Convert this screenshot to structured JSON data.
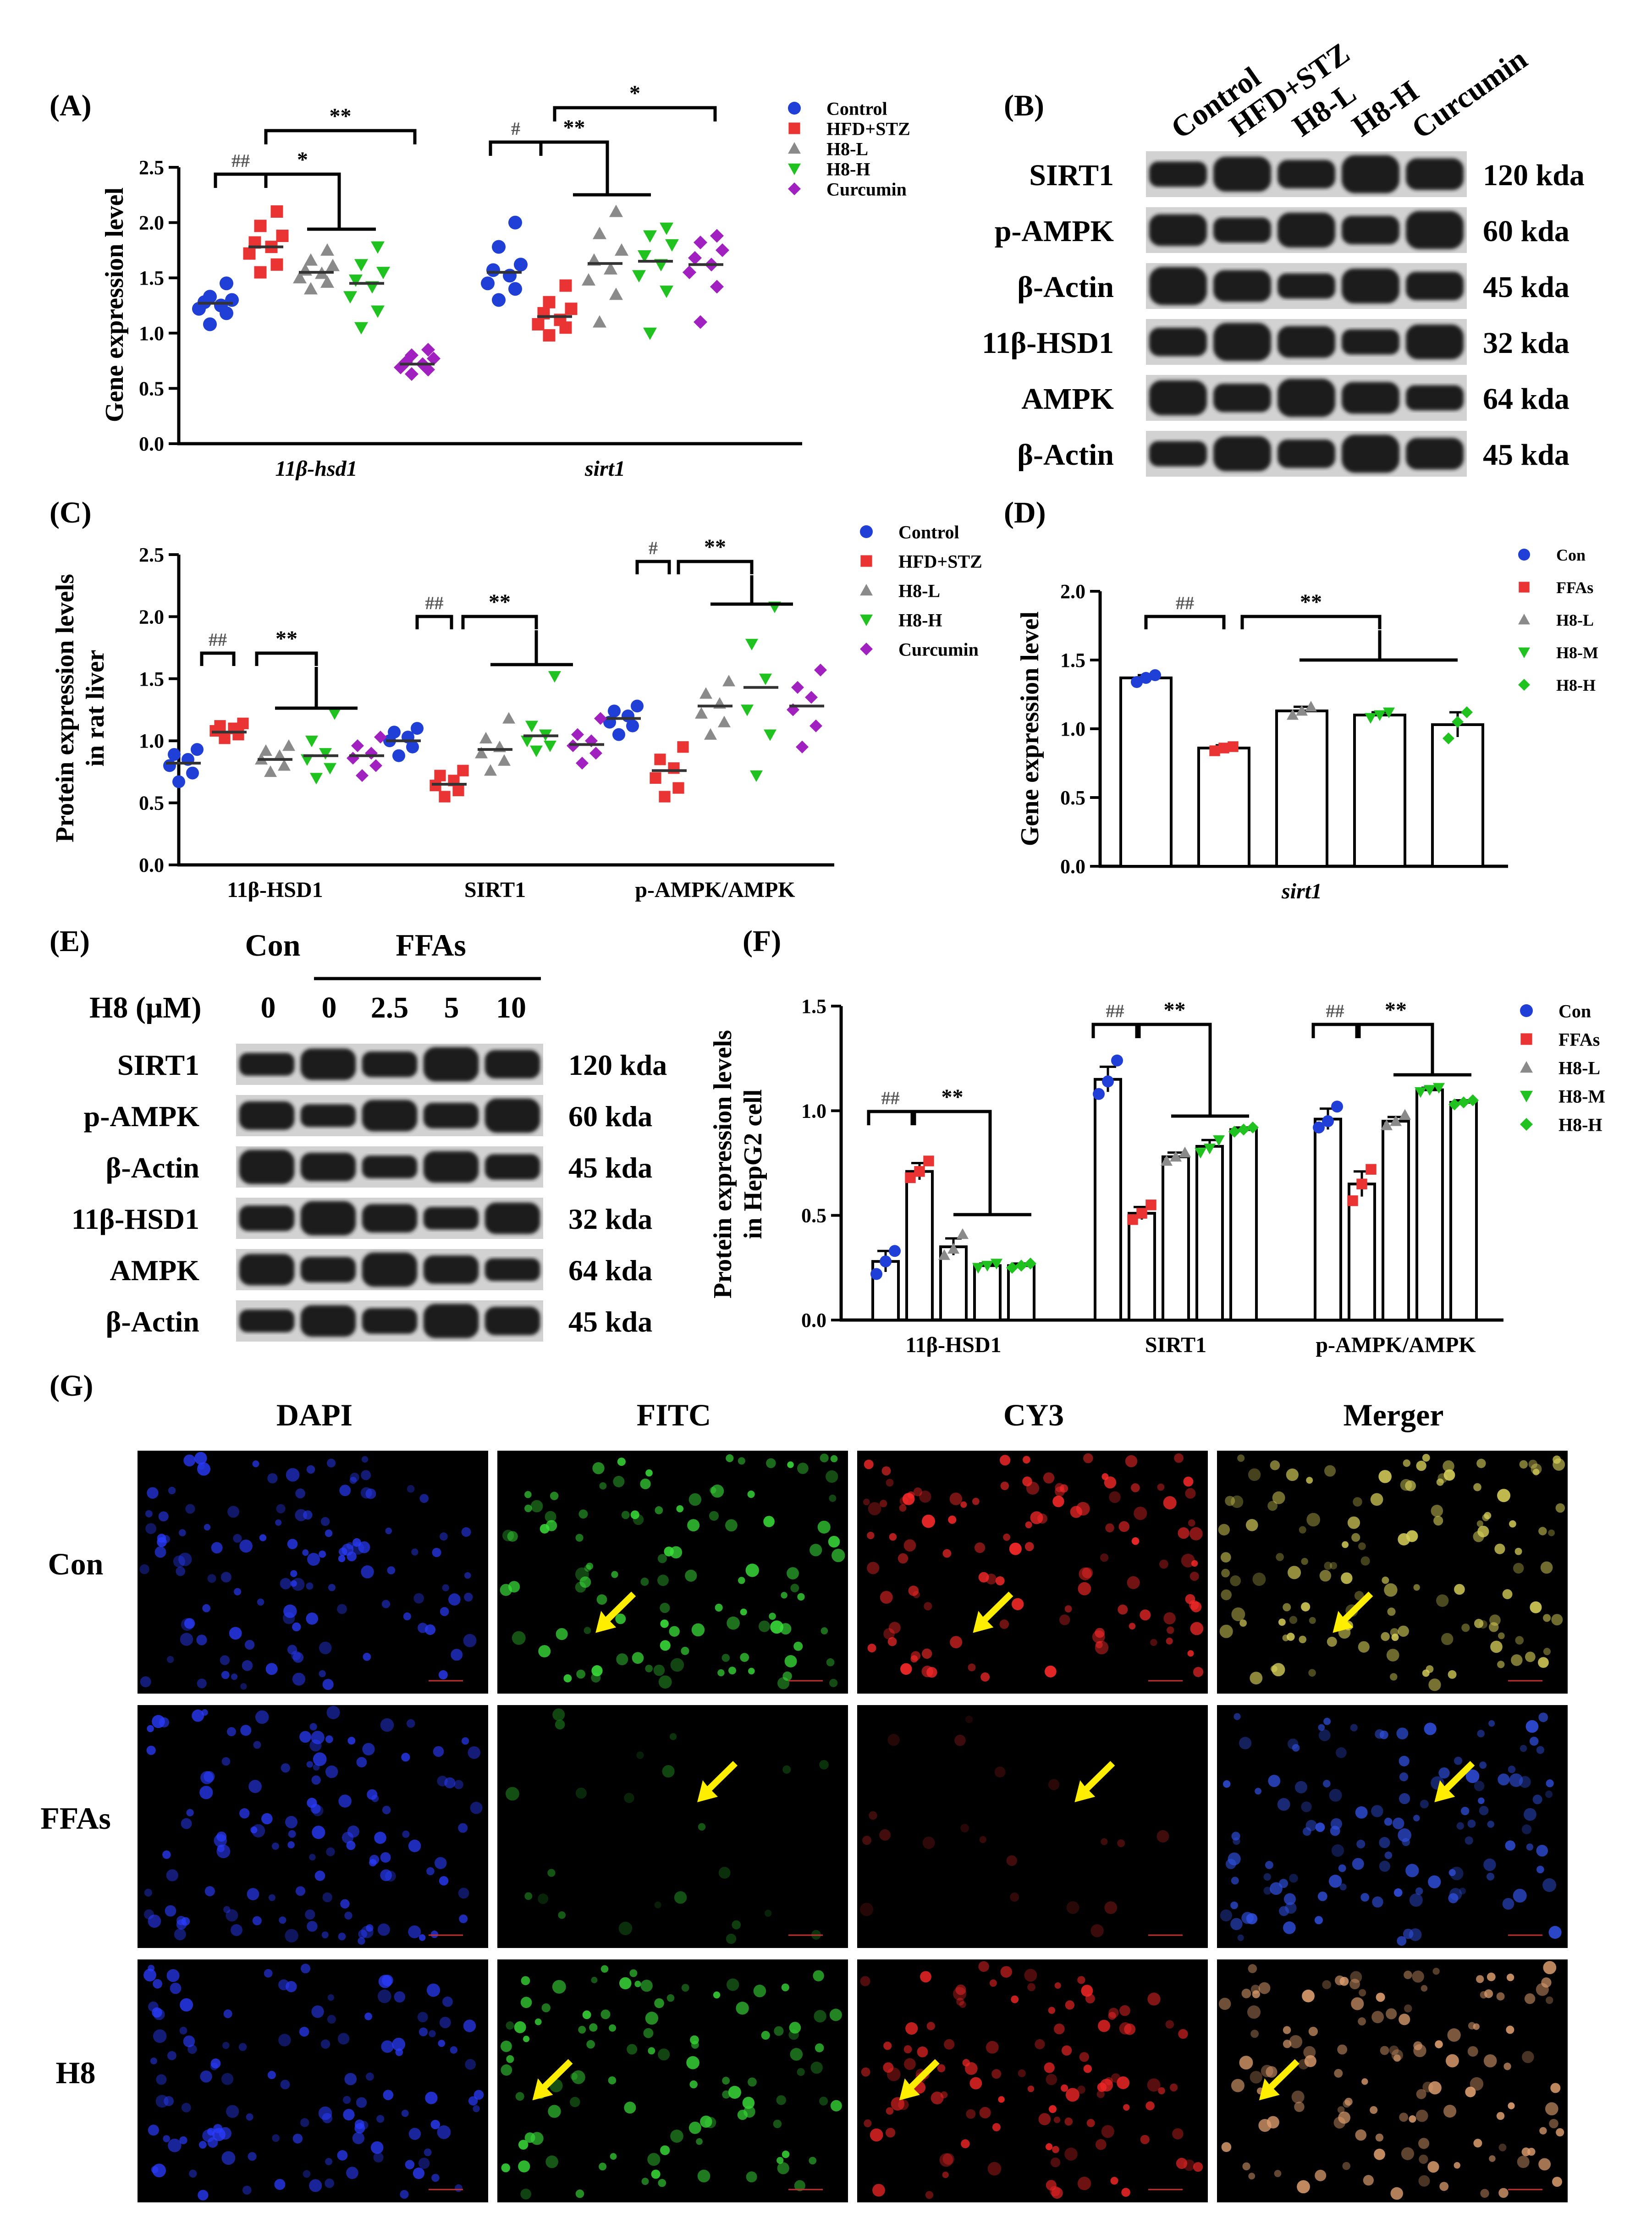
{
  "colors": {
    "Control": "#1f3fd6",
    "HFD+STZ": "#ea3434",
    "H8-L": "#8a8a8a",
    "H8-H": "#1fc21f",
    "Curcumin": "#a020c0",
    "Con": "#1f3fd6",
    "FFAs": "#ea3434",
    "H8-M": "#1fc21f",
    "blot_band": "#1c1c1c",
    "blot_bg": "#d2d2d2",
    "arrow": "#ffee00"
  },
  "panels": {
    "A": {
      "letter": "(A)",
      "ylabel": "Gene expression level",
      "yticks": [
        "0.0",
        "0.5",
        "1.0",
        "1.5",
        "2.0",
        "2.5"
      ],
      "group_labels": [
        "11β-hsd1",
        "sirt1"
      ],
      "legend": [
        "Control",
        "HFD+STZ",
        "H8-L",
        "H8-H",
        "Curcumin"
      ],
      "sig": [
        "##",
        "*",
        "**",
        "#",
        "**",
        "*"
      ]
    },
    "B": {
      "letter": "(B)",
      "lanes": [
        "Control",
        "HFD+STZ",
        "H8-L",
        "H8-H",
        "Curcumin"
      ],
      "rows": [
        {
          "name": "SIRT1",
          "kda": "120 kda"
        },
        {
          "name": "p-AMPK",
          "kda": "60 kda"
        },
        {
          "name": "β-Actin",
          "kda": "45 kda"
        },
        {
          "name": "11β-HSD1",
          "kda": "32 kda"
        },
        {
          "name": "AMPK",
          "kda": "64 kda"
        },
        {
          "name": "β-Actin",
          "kda": "45 kda"
        }
      ]
    },
    "C": {
      "letter": "(C)",
      "ylabel_line1": "Protein expression levels",
      "ylabel_line2": "in rat liver",
      "yticks": [
        "0.0",
        "0.5",
        "1.0",
        "1.5",
        "2.0",
        "2.5"
      ],
      "group_labels": [
        "11β-HSD1",
        "SIRT1",
        "p-AMPK/AMPK"
      ],
      "legend": [
        "Control",
        "HFD+STZ",
        "H8-L",
        "H8-H",
        "Curcumin"
      ],
      "sig": [
        "##",
        "**",
        "##",
        "**",
        "#",
        "**"
      ]
    },
    "D": {
      "letter": "(D)",
      "ylabel": "Gene expression level",
      "yticks": [
        "0.0",
        "0.5",
        "1.0",
        "1.5",
        "2.0"
      ],
      "group_label": "sirt1",
      "legend": [
        "Con",
        "FFAs",
        "H8-L",
        "H8-M",
        "H8-H"
      ],
      "sig": [
        "##",
        "**"
      ]
    },
    "E": {
      "letter": "(E)",
      "group_con": "Con",
      "group_ffas": "FFAs",
      "dose_label": "H8 (μM)",
      "doses": [
        "0",
        "0",
        "2.5",
        "5",
        "10"
      ],
      "rows": [
        {
          "name": "SIRT1",
          "kda": "120 kda"
        },
        {
          "name": "p-AMPK",
          "kda": "60 kda"
        },
        {
          "name": "β-Actin",
          "kda": "45 kda"
        },
        {
          "name": "11β-HSD1",
          "kda": "32 kda"
        },
        {
          "name": "AMPK",
          "kda": "64 kda"
        },
        {
          "name": "β-Actin",
          "kda": "45 kda"
        }
      ]
    },
    "F": {
      "letter": "(F)",
      "ylabel_line1": "Protein expression levels",
      "ylabel_line2": "in HepG2 cell",
      "yticks": [
        "0.0",
        "0.5",
        "1.0",
        "1.5"
      ],
      "group_labels": [
        "11β-HSD1",
        "SIRT1",
        "p-AMPK/AMPK"
      ],
      "legend": [
        "Con",
        "FFAs",
        "H8-L",
        "H8-M",
        "H8-H"
      ],
      "sig": [
        "##",
        "**",
        "##",
        "**",
        "##",
        "**"
      ]
    },
    "G": {
      "letter": "(G)",
      "columns": [
        "DAPI",
        "FITC",
        "CY3",
        "Merger"
      ],
      "rows": [
        "Con",
        "FFAs",
        "H8"
      ]
    }
  },
  "chart_data": [
    {
      "panel": "A",
      "type": "scatter",
      "categories": [
        "11β-hsd1",
        "sirt1"
      ],
      "ylim": [
        0,
        2.5
      ],
      "series": [
        {
          "name": "Control",
          "means": [
            1.27,
            1.55
          ],
          "points": [
            [
              1.08,
              1.18,
              1.22,
              1.25,
              1.28,
              1.3,
              1.33,
              1.45
            ],
            [
              1.3,
              1.4,
              1.45,
              1.52,
              1.57,
              1.62,
              1.78,
              2.0
            ]
          ]
        },
        {
          "name": "HFD+STZ",
          "means": [
            1.78,
            1.15
          ],
          "points": [
            [
              1.55,
              1.62,
              1.72,
              1.78,
              1.82,
              1.88,
              1.97,
              2.1
            ],
            [
              0.98,
              1.05,
              1.08,
              1.12,
              1.18,
              1.22,
              1.28,
              1.43
            ]
          ]
        },
        {
          "name": "H8-L",
          "means": [
            1.55,
            1.63
          ],
          "points": [
            [
              1.4,
              1.46,
              1.5,
              1.54,
              1.57,
              1.61,
              1.66,
              1.75
            ],
            [
              1.1,
              1.35,
              1.48,
              1.58,
              1.66,
              1.75,
              1.9,
              2.1
            ]
          ]
        },
        {
          "name": "H8-H",
          "means": [
            1.45,
            1.65
          ],
          "points": [
            [
              1.05,
              1.2,
              1.33,
              1.42,
              1.48,
              1.55,
              1.62,
              1.78
            ],
            [
              1.0,
              1.38,
              1.52,
              1.62,
              1.7,
              1.8,
              1.88,
              1.95
            ]
          ]
        },
        {
          "name": "Curcumin",
          "means": [
            0.72,
            1.62
          ],
          "points": [
            [
              0.63,
              0.67,
              0.69,
              0.72,
              0.74,
              0.77,
              0.8,
              0.85
            ],
            [
              1.1,
              1.42,
              1.55,
              1.62,
              1.68,
              1.75,
              1.82,
              1.88
            ]
          ]
        }
      ]
    },
    {
      "panel": "C",
      "type": "scatter",
      "categories": [
        "11β-HSD1",
        "SIRT1",
        "p-AMPK/AMPK"
      ],
      "ylim": [
        0,
        2.5
      ],
      "series": [
        {
          "name": "Control",
          "means": [
            0.82,
            1.0,
            1.18
          ],
          "points": [
            [
              0.67,
              0.74,
              0.8,
              0.85,
              0.89,
              0.93
            ],
            [
              0.88,
              0.95,
              1.0,
              1.03,
              1.07,
              1.1
            ],
            [
              1.05,
              1.12,
              1.15,
              1.2,
              1.24,
              1.28
            ]
          ]
        },
        {
          "name": "HFD+STZ",
          "means": [
            1.07,
            0.65,
            0.76
          ],
          "points": [
            [
              1.02,
              1.05,
              1.08,
              1.1,
              1.12,
              1.14
            ],
            [
              0.55,
              0.6,
              0.64,
              0.68,
              0.72,
              0.76
            ],
            [
              0.55,
              0.62,
              0.7,
              0.78,
              0.85,
              0.95
            ]
          ]
        },
        {
          "name": "H8-L",
          "means": [
            0.85,
            0.93,
            1.28
          ],
          "points": [
            [
              0.75,
              0.8,
              0.85,
              0.88,
              0.92,
              0.96
            ],
            [
              0.76,
              0.84,
              0.9,
              0.95,
              1.02,
              1.18
            ],
            [
              1.05,
              1.15,
              1.22,
              1.3,
              1.38,
              1.48
            ]
          ]
        },
        {
          "name": "H8-H",
          "means": [
            0.88,
            1.04,
            1.43
          ],
          "points": [
            [
              0.7,
              0.78,
              0.85,
              0.9,
              1.0,
              1.22
            ],
            [
              0.92,
              0.96,
              1.0,
              1.05,
              1.12,
              1.52
            ],
            [
              0.72,
              1.05,
              1.25,
              1.5,
              1.78,
              2.08
            ]
          ]
        },
        {
          "name": "Curcumin",
          "means": [
            0.88,
            0.97,
            1.28
          ],
          "points": [
            [
              0.72,
              0.8,
              0.86,
              0.9,
              0.96,
              1.03
            ],
            [
              0.82,
              0.9,
              0.96,
              1.0,
              1.05,
              1.18
            ],
            [
              0.95,
              1.12,
              1.25,
              1.35,
              1.43,
              1.57
            ]
          ]
        }
      ]
    },
    {
      "panel": "D",
      "type": "bar",
      "categories": [
        "sirt1"
      ],
      "ylim": [
        0,
        2.0
      ],
      "series": [
        {
          "name": "Con",
          "values": [
            1.37
          ],
          "errors": [
            0.02
          ],
          "points": [
            [
              1.34,
              1.37,
              1.39
            ]
          ]
        },
        {
          "name": "FFAs",
          "values": [
            0.86
          ],
          "errors": [
            0.02
          ],
          "points": [
            [
              0.84,
              0.86,
              0.87
            ]
          ]
        },
        {
          "name": "H8-L",
          "values": [
            1.13
          ],
          "errors": [
            0.03
          ],
          "points": [
            [
              1.1,
              1.13,
              1.16
            ]
          ]
        },
        {
          "name": "H8-M",
          "values": [
            1.1
          ],
          "errors": [
            0.02
          ],
          "points": [
            [
              1.08,
              1.1,
              1.12
            ]
          ]
        },
        {
          "name": "H8-H",
          "values": [
            1.03
          ],
          "errors": [
            0.09
          ],
          "points": [
            [
              0.93,
              1.05,
              1.12
            ]
          ]
        }
      ]
    },
    {
      "panel": "F",
      "type": "bar",
      "categories": [
        "11β-HSD1",
        "SIRT1",
        "p-AMPK/AMPK"
      ],
      "ylim": [
        0,
        1.5
      ],
      "series": [
        {
          "name": "Con",
          "values": [
            0.28,
            1.15,
            0.96
          ],
          "errors": [
            0.05,
            0.06,
            0.05
          ],
          "points": [
            [
              0.22,
              0.28,
              0.33
            ],
            [
              1.08,
              1.14,
              1.24
            ],
            [
              0.92,
              0.95,
              1.02
            ]
          ]
        },
        {
          "name": "FFAs",
          "values": [
            0.71,
            0.51,
            0.65
          ],
          "errors": [
            0.04,
            0.03,
            0.06
          ],
          "points": [
            [
              0.68,
              0.71,
              0.76
            ],
            [
              0.48,
              0.51,
              0.55
            ],
            [
              0.57,
              0.65,
              0.72
            ]
          ]
        },
        {
          "name": "H8-L",
          "values": [
            0.35,
            0.78,
            0.95
          ],
          "errors": [
            0.04,
            0.02,
            0.02
          ],
          "points": [
            [
              0.31,
              0.34,
              0.41
            ],
            [
              0.76,
              0.78,
              0.8
            ],
            [
              0.93,
              0.95,
              0.98
            ]
          ]
        },
        {
          "name": "H8-M",
          "values": [
            0.26,
            0.83,
            1.1
          ],
          "errors": [
            0.01,
            0.03,
            0.01
          ],
          "points": [
            [
              0.25,
              0.26,
              0.27
            ],
            [
              0.8,
              0.82,
              0.86
            ],
            [
              1.09,
              1.1,
              1.11
            ]
          ]
        },
        {
          "name": "H8-H",
          "values": [
            0.26,
            0.91,
            1.04
          ],
          "errors": [
            0.01,
            0.01,
            0.01
          ],
          "points": [
            [
              0.25,
              0.26,
              0.27
            ],
            [
              0.9,
              0.91,
              0.92
            ],
            [
              1.03,
              1.04,
              1.05
            ]
          ]
        }
      ]
    }
  ]
}
